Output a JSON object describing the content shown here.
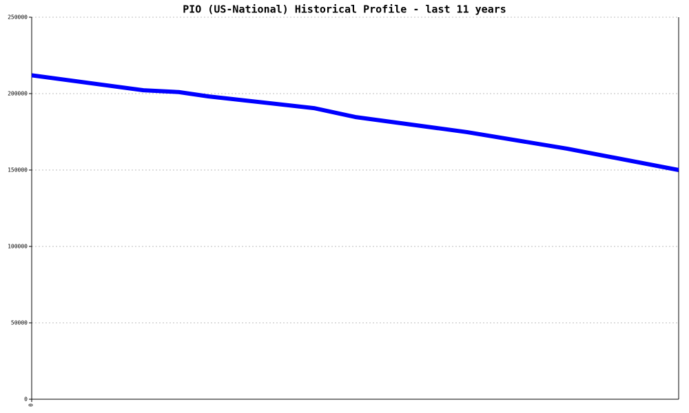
{
  "chart_data": {
    "type": "line",
    "title": "PIO (US-National) Historical Profile - last 11 years",
    "x": [
      0,
      1.9,
      2.5,
      3.0,
      4.8,
      5.5,
      7.4,
      9.1,
      11
    ],
    "series": [
      {
        "name": "PIO",
        "color": "#0000ff",
        "values": [
          212000,
          202200,
          201000,
          198200,
          190500,
          184700,
          174800,
          164000,
          150000
        ]
      }
    ],
    "xlim": [
      0,
      11
    ],
    "xticks": [
      0
    ],
    "ylim": [
      0,
      250000
    ],
    "yticks": [
      0,
      50000,
      100000,
      150000,
      200000,
      250000
    ],
    "grid": true
  }
}
